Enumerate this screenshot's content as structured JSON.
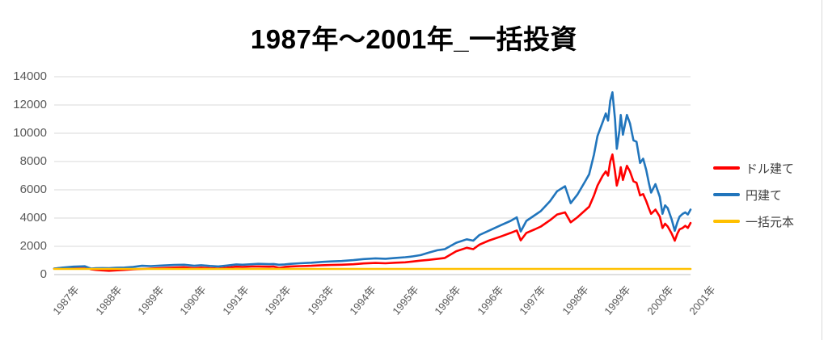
{
  "chart_data": {
    "type": "line",
    "title": "1987年〜2001年_一括投資",
    "xlabel": "",
    "ylabel": "",
    "ylim": [
      0,
      14000
    ],
    "yticks": [
      0,
      2000,
      4000,
      6000,
      8000,
      10000,
      12000,
      14000
    ],
    "xtick_labels": [
      "1987年",
      "1988年",
      "1989年",
      "1990年",
      "1991年",
      "1992年",
      "1993年",
      "1994年",
      "1995年",
      "1996年",
      "1996年",
      "1997年",
      "1998年",
      "1999年",
      "2000年",
      "2001年"
    ],
    "x_range_years": [
      1987.0,
      2001.5
    ],
    "grid": "horizontal-only",
    "gridline_color": "#d9d9d9",
    "axis_line_color": "#bfbfbf",
    "axis_label_color": "#595959",
    "legend_position": "right",
    "series": [
      {
        "name": "ドル建て",
        "color": "#ff0000",
        "x": [
          1987.0,
          1987.2,
          1987.44,
          1987.7,
          1987.8,
          1987.84,
          1987.95,
          1988.1,
          1988.25,
          1988.4,
          1988.6,
          1988.8,
          1989.0,
          1989.2,
          1989.45,
          1989.73,
          1989.96,
          1990.19,
          1990.35,
          1990.55,
          1990.74,
          1990.94,
          1991.15,
          1991.29,
          1991.5,
          1991.65,
          1991.9,
          1992.0,
          1992.12,
          1992.25,
          1992.39,
          1992.6,
          1992.86,
          1993.1,
          1993.31,
          1993.55,
          1993.82,
          1994.05,
          1994.32,
          1994.55,
          1994.77,
          1995.0,
          1995.15,
          1995.35,
          1995.53,
          1995.73,
          1995.9,
          1996.16,
          1996.4,
          1996.55,
          1996.69,
          1996.9,
          1997.18,
          1997.4,
          1997.54,
          1997.63,
          1997.76,
          1997.95,
          1998.09,
          1998.3,
          1998.46,
          1998.64,
          1998.77,
          1998.92,
          1999.1,
          1999.19,
          1999.3,
          1999.38,
          1999.5,
          1999.57,
          1999.62,
          1999.67,
          1999.72,
          1999.78,
          1999.82,
          1999.88,
          1999.91,
          1999.96,
          2000.05,
          2000.12,
          2000.2,
          2000.27,
          2000.35,
          2000.42,
          2000.49,
          2000.55,
          2000.6,
          2000.7,
          2000.8,
          2000.86,
          2000.92,
          2000.98,
          2001.07,
          2001.14,
          2001.2,
          2001.25,
          2001.32,
          2001.38,
          2001.44,
          2001.5
        ],
        "values": [
          415,
          480,
          530,
          555,
          420,
          370,
          330,
          300,
          270,
          300,
          330,
          370,
          400,
          420,
          460,
          500,
          520,
          450,
          490,
          450,
          430,
          490,
          560,
          545,
          570,
          580,
          560,
          570,
          480,
          540,
          580,
          600,
          620,
          660,
          680,
          700,
          730,
          790,
          820,
          800,
          840,
          870,
          920,
          990,
          1040,
          1110,
          1180,
          1650,
          1900,
          1800,
          2120,
          2400,
          2700,
          2950,
          3120,
          2420,
          2950,
          3200,
          3400,
          3850,
          4250,
          4400,
          3700,
          4050,
          4550,
          4800,
          5600,
          6300,
          7000,
          7300,
          7000,
          8000,
          8500,
          7300,
          6300,
          7000,
          7600,
          6700,
          7700,
          7300,
          6600,
          6500,
          5600,
          5700,
          5200,
          4700,
          4300,
          4600,
          4100,
          3300,
          3600,
          3400,
          2900,
          2400,
          2900,
          3200,
          3300,
          3450,
          3300,
          3650
        ]
      },
      {
        "name": "円建て",
        "color": "#2175bc",
        "x": [
          1987.0,
          1987.2,
          1987.44,
          1987.7,
          1987.8,
          1987.84,
          1987.95,
          1988.1,
          1988.25,
          1988.4,
          1988.6,
          1988.8,
          1989.0,
          1989.2,
          1989.45,
          1989.73,
          1989.96,
          1990.19,
          1990.35,
          1990.55,
          1990.74,
          1990.94,
          1991.15,
          1991.29,
          1991.5,
          1991.65,
          1991.9,
          1992.0,
          1992.12,
          1992.25,
          1992.39,
          1992.6,
          1992.86,
          1993.1,
          1993.31,
          1993.55,
          1993.82,
          1994.05,
          1994.32,
          1994.55,
          1994.77,
          1995.0,
          1995.15,
          1995.35,
          1995.53,
          1995.73,
          1995.9,
          1996.16,
          1996.4,
          1996.55,
          1996.69,
          1996.9,
          1997.18,
          1997.4,
          1997.54,
          1997.63,
          1997.76,
          1997.95,
          1998.09,
          1998.3,
          1998.46,
          1998.64,
          1998.77,
          1998.92,
          1999.1,
          1999.19,
          1999.3,
          1999.38,
          1999.5,
          1999.57,
          1999.62,
          1999.67,
          1999.72,
          1999.78,
          1999.82,
          1999.88,
          1999.91,
          1999.96,
          2000.05,
          2000.12,
          2000.2,
          2000.27,
          2000.35,
          2000.42,
          2000.49,
          2000.55,
          2000.6,
          2000.7,
          2000.8,
          2000.86,
          2000.92,
          2000.98,
          2001.07,
          2001.14,
          2001.2,
          2001.25,
          2001.32,
          2001.38,
          2001.44,
          2001.5
        ],
        "values": [
          420,
          500,
          560,
          590,
          470,
          430,
          450,
          460,
          450,
          480,
          500,
          540,
          620,
          600,
          640,
          680,
          700,
          620,
          660,
          610,
          580,
          640,
          720,
          700,
          730,
          760,
          740,
          750,
          700,
          720,
          760,
          800,
          840,
          900,
          930,
          960,
          1020,
          1100,
          1150,
          1120,
          1180,
          1230,
          1280,
          1380,
          1550,
          1720,
          1800,
          2250,
          2500,
          2400,
          2800,
          3100,
          3500,
          3800,
          4050,
          3050,
          3800,
          4200,
          4500,
          5200,
          5900,
          6250,
          5050,
          5650,
          6600,
          7100,
          8500,
          9800,
          10800,
          11400,
          10900,
          12300,
          12900,
          11000,
          8900,
          10200,
          11300,
          9900,
          11300,
          10700,
          9500,
          9400,
          7900,
          8200,
          7400,
          6500,
          5800,
          6400,
          5500,
          4300,
          4900,
          4700,
          3900,
          3100,
          3700,
          4100,
          4300,
          4400,
          4250,
          4600
        ]
      },
      {
        "name": "一括元本",
        "color": "#ffc000",
        "x": [
          1987.0,
          2001.5
        ],
        "values": [
          400,
          400
        ]
      }
    ]
  }
}
